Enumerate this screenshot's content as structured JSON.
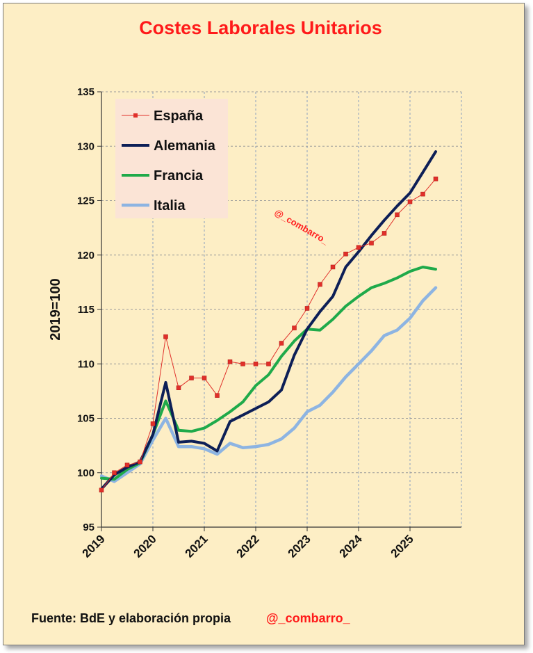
{
  "title": "Costes Laborales Unitarios",
  "footer": {
    "source": "Fuente: BdE y elaboración propia",
    "handle": "@_combarro_"
  },
  "watermark": "@_combarro_",
  "chart_data": {
    "type": "line",
    "title": "Costes Laborales Unitarios",
    "xlabel": "",
    "ylabel": "2019=100",
    "ylim": [
      95,
      135
    ],
    "yticks": [
      "95",
      "100",
      "105",
      "110",
      "115",
      "120",
      "125",
      "130",
      "135"
    ],
    "xlim": [
      2019.0,
      2026.0
    ],
    "xticks": [
      "2019",
      "2020",
      "2021",
      "2022",
      "2023",
      "2024",
      "2025"
    ],
    "grid": "vertical dashed",
    "legend_position": "top-left",
    "x": [
      2019.0,
      2019.25,
      2019.5,
      2019.75,
      2020.0,
      2020.25,
      2020.5,
      2020.75,
      2021.0,
      2021.25,
      2021.5,
      2021.75,
      2022.0,
      2022.25,
      2022.5,
      2022.75,
      2023.0,
      2023.25,
      2023.5,
      2023.75,
      2024.0,
      2024.25,
      2024.5,
      2024.75,
      2025.0,
      2025.25,
      2025.5
    ],
    "series": [
      {
        "name": "España",
        "color": "#e0302a",
        "marker": "square",
        "values": [
          98.4,
          100.0,
          100.7,
          101.0,
          104.5,
          112.5,
          107.8,
          108.7,
          108.7,
          107.1,
          110.2,
          110.0,
          110.0,
          110.0,
          111.9,
          113.3,
          115.1,
          117.3,
          118.9,
          120.1,
          120.7,
          121.1,
          122.0,
          123.7,
          124.9,
          125.6,
          127.0
        ]
      },
      {
        "name": "Alemania",
        "color": "#0d1f57",
        "values": [
          98.5,
          99.8,
          100.5,
          101.0,
          103.5,
          108.3,
          102.8,
          102.9,
          102.7,
          102.0,
          104.7,
          105.3,
          105.9,
          106.5,
          107.6,
          110.8,
          113.2,
          114.8,
          116.2,
          118.9,
          120.3,
          121.8,
          123.2,
          124.5,
          125.7,
          127.6,
          129.5
        ]
      },
      {
        "name": "Francia",
        "color": "#1faa4a",
        "values": [
          99.5,
          99.4,
          100.3,
          100.9,
          103.5,
          106.6,
          103.9,
          103.8,
          104.1,
          104.8,
          105.6,
          106.5,
          108.0,
          109.0,
          110.7,
          112.1,
          113.2,
          113.1,
          114.1,
          115.3,
          116.2,
          117.0,
          117.4,
          117.9,
          118.5,
          118.9,
          118.7
        ]
      },
      {
        "name": "Italia",
        "color": "#8db4e2",
        "values": [
          99.7,
          99.2,
          100.0,
          100.8,
          103.0,
          105.0,
          102.4,
          102.4,
          102.2,
          101.7,
          102.7,
          102.3,
          102.4,
          102.6,
          103.1,
          104.1,
          105.6,
          106.2,
          107.4,
          108.8,
          110.0,
          111.2,
          112.6,
          113.1,
          114.2,
          115.8,
          117.0
        ]
      }
    ]
  }
}
